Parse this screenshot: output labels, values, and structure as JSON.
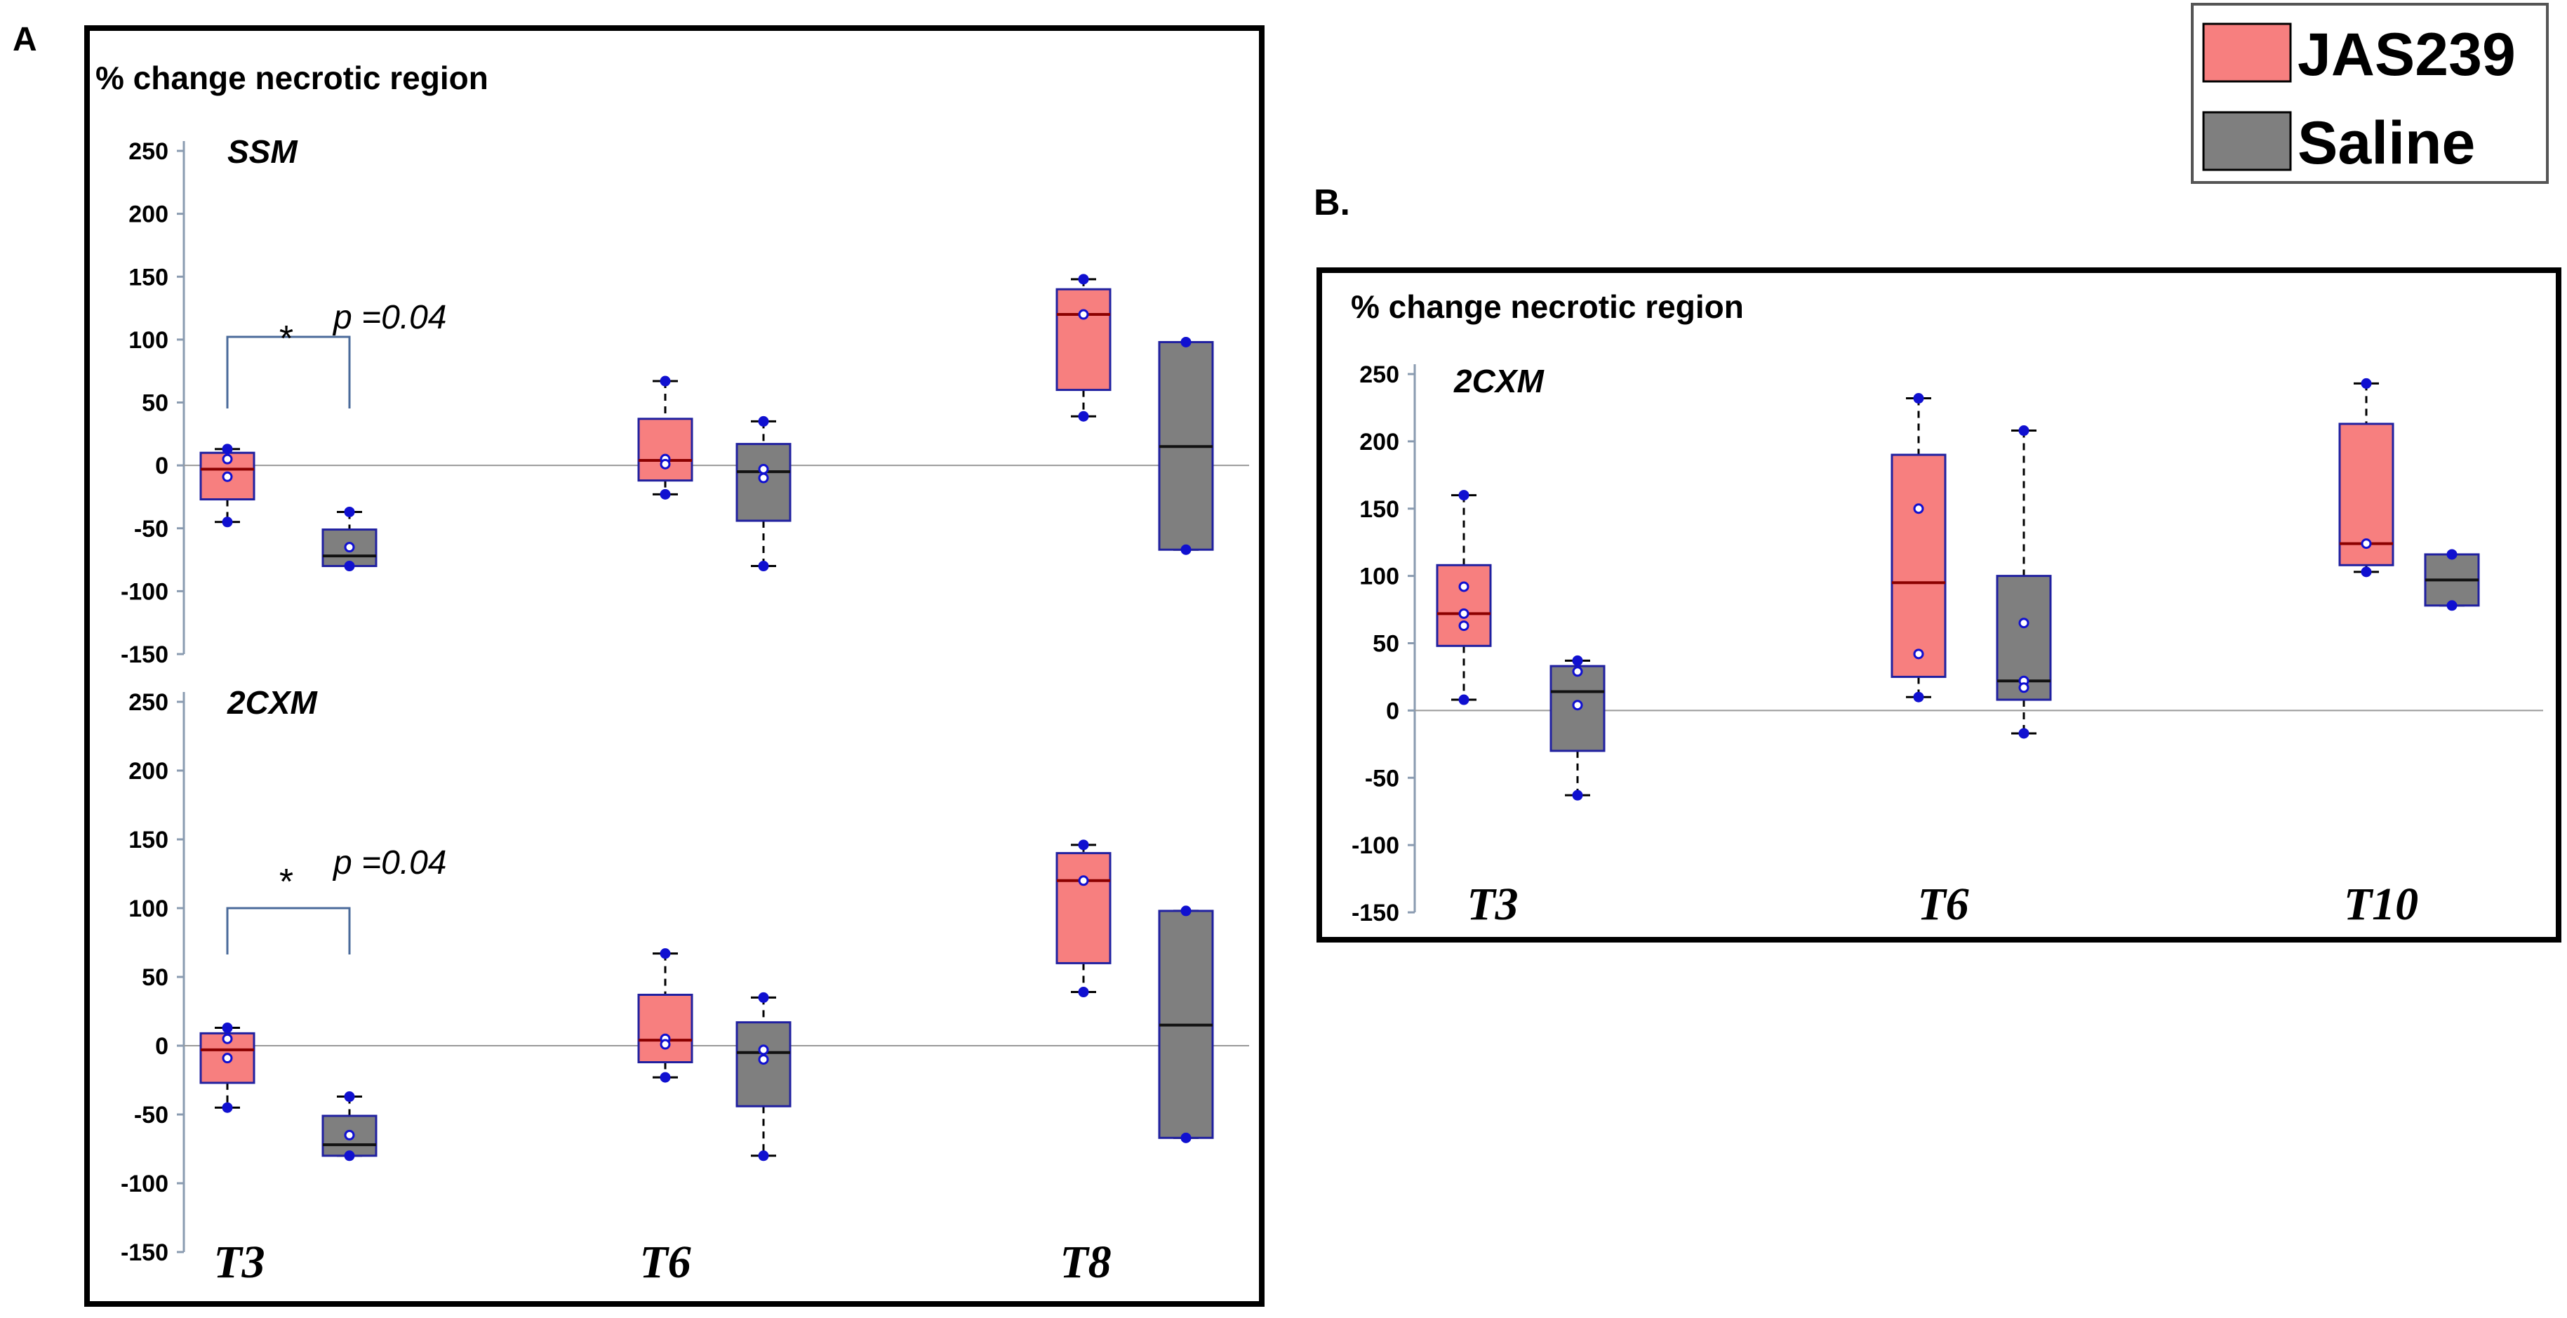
{
  "legend": {
    "items": [
      {
        "label": "JAS239",
        "color": "#f77f7f"
      },
      {
        "label": "Saline",
        "color": "#7f7f7f"
      }
    ]
  },
  "panels": {
    "A": {
      "label": "A",
      "ylabel": "% change necrotic region"
    },
    "B": {
      "label": "B.",
      "ylabel": "% change necrotic region"
    }
  },
  "chart_data": [
    {
      "type": "box",
      "panel": "A",
      "subtitle": "SSM",
      "ylim": [
        -150,
        250
      ],
      "yticks": [
        -150,
        -100,
        -50,
        0,
        50,
        100,
        150,
        200,
        250
      ],
      "categories": [
        "T3",
        "T6",
        "T8"
      ],
      "show_category_labels": false,
      "annotation": {
        "category": "T3",
        "star": "*",
        "text": "p =0.04"
      },
      "series": [
        {
          "name": "JAS239",
          "boxes": [
            {
              "min": -45,
              "q1": -27,
              "median": -3,
              "q3": 10,
              "max": 13,
              "points": [
                13,
                5,
                -9,
                -45
              ]
            },
            {
              "min": -23,
              "q1": -12,
              "median": 4,
              "q3": 37,
              "max": 67,
              "points": [
                67,
                5,
                1,
                -23
              ]
            },
            {
              "min": 39,
              "q1": 60,
              "median": 120,
              "q3": 140,
              "max": 148,
              "points": [
                148,
                120,
                39
              ]
            }
          ]
        },
        {
          "name": "Saline",
          "boxes": [
            {
              "min": -80,
              "q1": -80,
              "median": -72,
              "q3": -51,
              "max": -37,
              "points": [
                -37,
                -65,
                -80
              ]
            },
            {
              "min": -80,
              "q1": -44,
              "median": -5,
              "q3": 17,
              "max": 35,
              "points": [
                35,
                -3,
                -10,
                -80
              ]
            },
            {
              "min": -67,
              "q1": -67,
              "median": 15,
              "q3": 98,
              "max": 98,
              "points": [
                98,
                -67
              ]
            }
          ]
        }
      ]
    },
    {
      "type": "box",
      "panel": "A",
      "subtitle": "2CXM",
      "ylim": [
        -150,
        250
      ],
      "yticks": [
        -150,
        -100,
        -50,
        0,
        50,
        100,
        150,
        200,
        250
      ],
      "categories": [
        "T3",
        "T6",
        "T8"
      ],
      "show_category_labels": true,
      "annotation": {
        "category": "T3",
        "star": "*",
        "text": "p =0.04"
      },
      "series": [
        {
          "name": "JAS239",
          "boxes": [
            {
              "min": -45,
              "q1": -27,
              "median": -3,
              "q3": 9,
              "max": 13,
              "points": [
                13,
                5,
                -9,
                -45
              ]
            },
            {
              "min": -23,
              "q1": -12,
              "median": 4,
              "q3": 37,
              "max": 67,
              "points": [
                67,
                5,
                1,
                -23
              ]
            },
            {
              "min": 39,
              "q1": 60,
              "median": 120,
              "q3": 140,
              "max": 146,
              "points": [
                146,
                120,
                39
              ]
            }
          ]
        },
        {
          "name": "Saline",
          "boxes": [
            {
              "min": -80,
              "q1": -80,
              "median": -72,
              "q3": -51,
              "max": -37,
              "points": [
                -37,
                -65,
                -80
              ]
            },
            {
              "min": -80,
              "q1": -44,
              "median": -5,
              "q3": 17,
              "max": 35,
              "points": [
                35,
                -3,
                -10,
                -80
              ]
            },
            {
              "min": -67,
              "q1": -67,
              "median": 15,
              "q3": 98,
              "max": 98,
              "points": [
                98,
                -67
              ]
            }
          ]
        }
      ]
    },
    {
      "type": "box",
      "panel": "B",
      "subtitle": "2CXM",
      "ylim": [
        -150,
        250
      ],
      "yticks": [
        -150,
        -100,
        -50,
        0,
        50,
        100,
        150,
        200,
        250
      ],
      "categories": [
        "T3",
        "T6",
        "T10"
      ],
      "show_category_labels": true,
      "series": [
        {
          "name": "JAS239",
          "boxes": [
            {
              "min": 8,
              "q1": 48,
              "median": 72,
              "q3": 108,
              "max": 160,
              "points": [
                160,
                92,
                72,
                63,
                8
              ]
            },
            {
              "min": 10,
              "q1": 25,
              "median": 95,
              "q3": 190,
              "max": 232,
              "points": [
                232,
                150,
                42,
                10
              ]
            },
            {
              "min": 103,
              "q1": 108,
              "median": 124,
              "q3": 213,
              "max": 243,
              "points": [
                243,
                124,
                103
              ]
            }
          ]
        },
        {
          "name": "Saline",
          "boxes": [
            {
              "min": -63,
              "q1": -30,
              "median": 14,
              "q3": 33,
              "max": 37,
              "points": [
                37,
                29,
                4,
                -63
              ]
            },
            {
              "min": -17,
              "q1": 8,
              "median": 22,
              "q3": 100,
              "max": 208,
              "points": [
                208,
                65,
                22,
                17,
                -17
              ]
            },
            {
              "min": 78,
              "q1": 78,
              "median": 97,
              "q3": 116,
              "max": 116,
              "points": [
                116,
                78
              ]
            }
          ]
        }
      ]
    }
  ]
}
